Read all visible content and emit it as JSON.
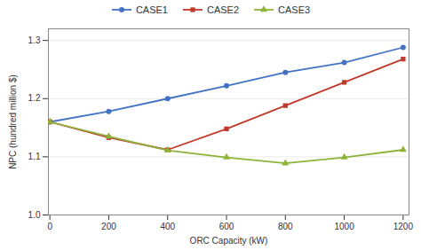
{
  "chart_data": {
    "type": "line",
    "xlabel": "ORC Capacity (kW)",
    "ylabel": "NPC (hundred million $)",
    "x": [
      0,
      200,
      400,
      600,
      800,
      1000,
      1200
    ],
    "series": [
      {
        "name": "CASE1",
        "color": "#4472C4",
        "marker": "circle",
        "values": [
          1.16,
          1.178,
          1.2,
          1.222,
          1.245,
          1.262,
          1.288
        ]
      },
      {
        "name": "CASE2",
        "color": "#C0392B",
        "marker": "square",
        "values": [
          1.16,
          1.133,
          1.112,
          1.148,
          1.188,
          1.228,
          1.268
        ]
      },
      {
        "name": "CASE3",
        "color": "#8DB33A",
        "marker": "triangle",
        "values": [
          1.16,
          1.135,
          1.111,
          1.099,
          1.089,
          1.099,
          1.112
        ]
      }
    ],
    "xlim": [
      -5,
      1220
    ],
    "ylim": [
      1.0,
      1.32
    ],
    "xticks": [
      0,
      200,
      400,
      600,
      800,
      1000,
      1200
    ],
    "yticks": [
      {
        "value": 1.0,
        "label": "1.0"
      },
      1.1,
      1.2,
      1.3
    ],
    "grid": "y",
    "legend": "top"
  }
}
